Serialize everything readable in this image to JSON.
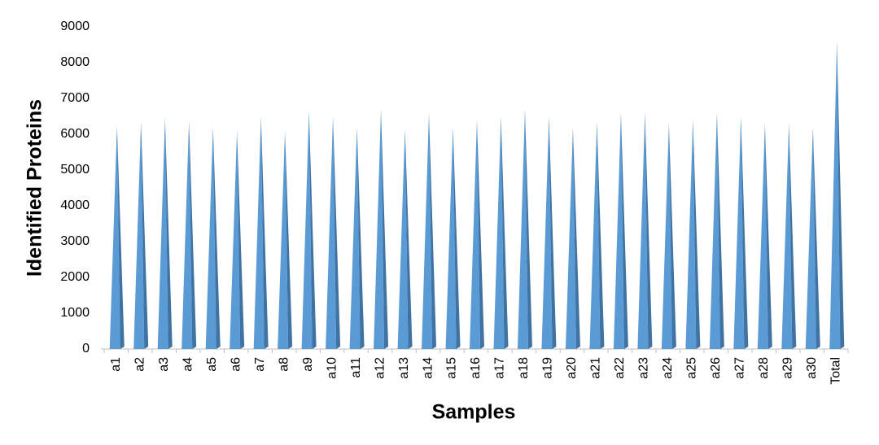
{
  "chart_data": {
    "type": "pyramid-bar",
    "x_label": "Samples",
    "y_label": "Identified Proteins",
    "categories": [
      "a1",
      "a2",
      "a3",
      "a4",
      "a5",
      "a6",
      "a7",
      "a8",
      "a9",
      "a10",
      "a11",
      "a12",
      "a13",
      "a14",
      "a15",
      "a16",
      "a17",
      "a18",
      "a19",
      "a20",
      "a21",
      "a22",
      "a23",
      "a24",
      "a25",
      "a26",
      "a27",
      "a28",
      "a29",
      "a30",
      "Total"
    ],
    "values": [
      6250,
      6350,
      6450,
      6380,
      6200,
      6100,
      6500,
      6100,
      6650,
      6500,
      6200,
      6700,
      6150,
      6600,
      6200,
      6400,
      6500,
      6700,
      6500,
      6200,
      6350,
      6600,
      6600,
      6300,
      6400,
      6600,
      6500,
      6300,
      6300,
      6200,
      8600
    ],
    "color": "#5b9bd5",
    "ylim": [
      0,
      9000
    ],
    "yticks": [
      0,
      1000,
      2000,
      3000,
      4000,
      5000,
      6000,
      7000,
      8000,
      9000
    ],
    "grid": false
  }
}
